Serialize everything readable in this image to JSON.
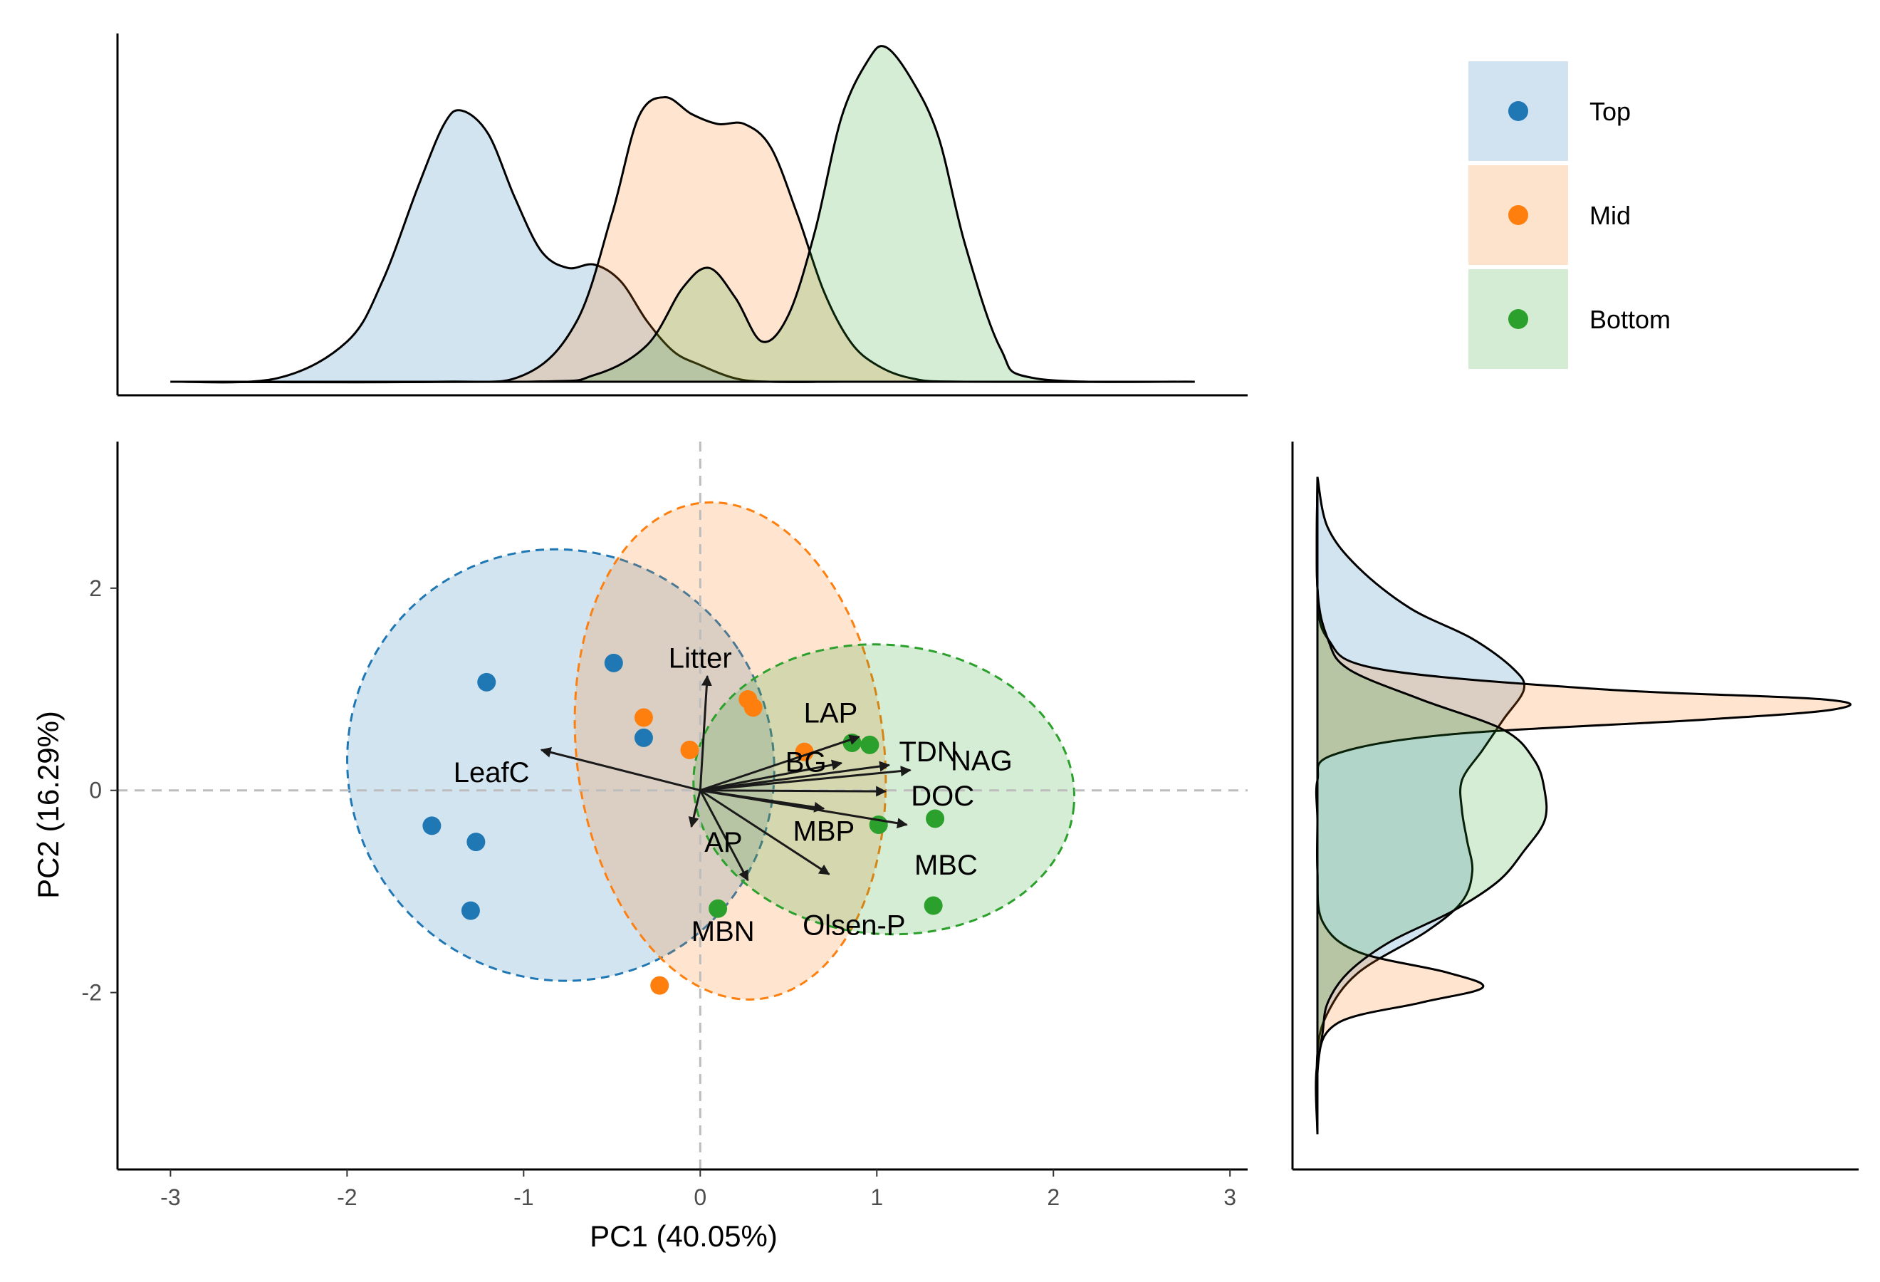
{
  "chart_data": [
    {
      "type": "scatter",
      "subtype": "pca-biplot",
      "title": "",
      "xlabel": "PC1 (40.05%)",
      "ylabel": "PC2 (16.29%)",
      "xlim": [
        -3.3,
        3.1
      ],
      "ylim": [
        -3.75,
        3.45
      ],
      "xticks": [
        -3,
        -2,
        -1,
        0,
        1,
        2,
        3
      ],
      "xtick_labels": [
        "-3",
        "-2",
        "-1",
        "0",
        "1",
        "2",
        "3"
      ],
      "yticks": [
        -2,
        0,
        2
      ],
      "ytick_labels": [
        "-2",
        "0",
        "2"
      ],
      "grid": false,
      "reference_lines": {
        "x": 0,
        "y": 0,
        "style": "dashed",
        "color": "#bdbdbd"
      },
      "series": [
        {
          "name": "Top",
          "color": "#1f77b4",
          "points": [
            {
              "x": -1.21,
              "y": 1.07
            },
            {
              "x": -0.49,
              "y": 1.26
            },
            {
              "x": -0.32,
              "y": 0.52
            },
            {
              "x": -1.52,
              "y": -0.35
            },
            {
              "x": -1.27,
              "y": -0.51
            },
            {
              "x": -1.3,
              "y": -1.19
            }
          ],
          "ellipse": {
            "cx": -0.79,
            "cy": 0.25,
            "rx": 1.2,
            "ry": 2.15,
            "angle_deg": -33
          }
        },
        {
          "name": "Mid",
          "color": "#ff7f0e",
          "points": [
            {
              "x": -0.32,
              "y": 0.72
            },
            {
              "x": 0.27,
              "y": 0.9
            },
            {
              "x": 0.3,
              "y": 0.82
            },
            {
              "x": -0.06,
              "y": 0.4
            },
            {
              "x": 0.59,
              "y": 0.38
            },
            {
              "x": -0.23,
              "y": -1.93
            }
          ],
          "ellipse": {
            "cx": 0.17,
            "cy": 0.39,
            "rx": 0.87,
            "ry": 2.47,
            "angle_deg": -7
          }
        },
        {
          "name": "Bottom",
          "color": "#2ca02c",
          "points": [
            {
              "x": 0.86,
              "y": 0.47
            },
            {
              "x": 0.96,
              "y": 0.45
            },
            {
              "x": 1.01,
              "y": -0.34
            },
            {
              "x": 1.33,
              "y": -0.28
            },
            {
              "x": 1.32,
              "y": -1.14
            },
            {
              "x": 0.1,
              "y": -1.17
            }
          ],
          "ellipse": {
            "cx": 1.04,
            "cy": 0.01,
            "rx": 1.08,
            "ry": 1.43,
            "angle_deg": 5
          }
        }
      ],
      "loadings": [
        {
          "label": "Litter",
          "x": 0.04,
          "y": 1.13
        },
        {
          "label": "LeafC",
          "x": -0.9,
          "y": 0.4
        },
        {
          "label": "LAP",
          "x": 0.9,
          "y": 0.53
        },
        {
          "label": "TDN",
          "x": 1.07,
          "y": 0.25
        },
        {
          "label": "NAG",
          "x": 1.19,
          "y": 0.2
        },
        {
          "label": "BG",
          "x": 0.8,
          "y": 0.27
        },
        {
          "label": "DOC",
          "x": 1.05,
          "y": -0.01
        },
        {
          "label": "MBP",
          "x": 0.7,
          "y": -0.18
        },
        {
          "label": "MBC",
          "x": 1.17,
          "y": -0.34
        },
        {
          "label": "AP",
          "x": -0.05,
          "y": -0.36
        },
        {
          "label": "MBN",
          "x": 0.27,
          "y": -0.89
        },
        {
          "label": "Olsen-P",
          "x": 0.73,
          "y": -0.83
        }
      ]
    },
    {
      "type": "area",
      "subtype": "density",
      "orientation": "horizontal",
      "axis": "PC1",
      "series": [
        {
          "name": "Top",
          "color": "#1f77b4",
          "x": [
            -3.0,
            -2.4,
            -2.0,
            -1.8,
            -1.6,
            -1.45,
            -1.35,
            -1.2,
            -1.05,
            -0.9,
            -0.75,
            -0.6,
            -0.45,
            -0.3,
            -0.15,
            0.0,
            0.2,
            0.4,
            0.8,
            1.2,
            2.8
          ],
          "density": [
            0.0,
            0.01,
            0.12,
            0.3,
            0.58,
            0.77,
            0.81,
            0.74,
            0.55,
            0.39,
            0.34,
            0.35,
            0.3,
            0.18,
            0.09,
            0.05,
            0.01,
            0.0,
            0.0,
            0.0,
            0.0
          ]
        },
        {
          "name": "Mid",
          "color": "#ff7f0e",
          "x": [
            -3.0,
            -1.5,
            -1.0,
            -0.7,
            -0.5,
            -0.35,
            -0.2,
            -0.05,
            0.1,
            0.25,
            0.4,
            0.55,
            0.7,
            0.85,
            1.0,
            1.2,
            1.5,
            2.8
          ],
          "density": [
            0.0,
            0.0,
            0.02,
            0.18,
            0.5,
            0.79,
            0.85,
            0.8,
            0.77,
            0.77,
            0.7,
            0.5,
            0.27,
            0.12,
            0.05,
            0.01,
            0.0,
            0.0
          ],
          "note": "bimodal ridge with a shoulder near -0.45"
        },
        {
          "name": "Bottom",
          "color": "#2ca02c",
          "x": [
            -3.0,
            -1.0,
            -0.6,
            -0.3,
            -0.1,
            0.05,
            0.2,
            0.35,
            0.5,
            0.65,
            0.8,
            0.95,
            1.05,
            1.2,
            1.35,
            1.5,
            1.7,
            1.9,
            2.8
          ],
          "density": [
            0.0,
            0.0,
            0.02,
            0.11,
            0.28,
            0.34,
            0.25,
            0.12,
            0.2,
            0.45,
            0.79,
            0.96,
            1.0,
            0.9,
            0.73,
            0.41,
            0.1,
            0.01,
            0.0
          ]
        }
      ]
    },
    {
      "type": "area",
      "subtype": "density",
      "orientation": "vertical",
      "axis": "PC2",
      "series": [
        {
          "name": "Top",
          "color": "#1f77b4",
          "y": [
            3.1,
            2.6,
            2.2,
            1.8,
            1.5,
            1.2,
            1.0,
            0.7,
            0.4,
            0.1,
            -0.2,
            -0.5,
            -0.8,
            -1.1,
            -1.4,
            -1.8,
            -2.2,
            -2.6,
            -3.4
          ],
          "density": [
            0.0,
            0.02,
            0.08,
            0.18,
            0.3,
            0.38,
            0.4,
            0.36,
            0.32,
            0.28,
            0.28,
            0.29,
            0.3,
            0.28,
            0.21,
            0.08,
            0.02,
            0.0,
            0.0
          ]
        },
        {
          "name": "Mid",
          "color": "#ff7f0e",
          "y": [
            3.1,
            2.0,
            1.5,
            1.2,
            1.0,
            0.9,
            0.8,
            0.7,
            0.55,
            0.35,
            0.1,
            -0.3,
            -0.8,
            -1.3,
            -1.6,
            -1.8,
            -1.95,
            -2.1,
            -2.3,
            -2.7,
            -3.4
          ],
          "density": [
            0.0,
            0.0,
            0.02,
            0.12,
            0.55,
            0.98,
            1.0,
            0.75,
            0.25,
            0.03,
            0.0,
            0.0,
            0.0,
            0.01,
            0.08,
            0.25,
            0.32,
            0.2,
            0.04,
            0.0,
            0.0
          ]
        },
        {
          "name": "Bottom",
          "color": "#2ca02c",
          "y": [
            3.1,
            2.0,
            1.5,
            1.2,
            0.9,
            0.6,
            0.3,
            0.0,
            -0.3,
            -0.6,
            -0.9,
            -1.2,
            -1.5,
            -1.8,
            -2.1,
            -2.4,
            -2.8,
            -3.4
          ],
          "density": [
            0.0,
            0.0,
            0.02,
            0.06,
            0.2,
            0.36,
            0.42,
            0.44,
            0.44,
            0.4,
            0.35,
            0.26,
            0.14,
            0.06,
            0.02,
            0.01,
            0.0,
            0.0
          ]
        }
      ]
    }
  ],
  "legend": {
    "placement": "top-right",
    "entries": [
      {
        "label": "Top",
        "color": "#1f77b4",
        "bg": "#d1e3f0"
      },
      {
        "label": "Mid",
        "color": "#ff7f0e",
        "bg": "#fde2cc"
      },
      {
        "label": "Bottom",
        "color": "#2ca02c",
        "bg": "#d3ecd3"
      }
    ]
  }
}
